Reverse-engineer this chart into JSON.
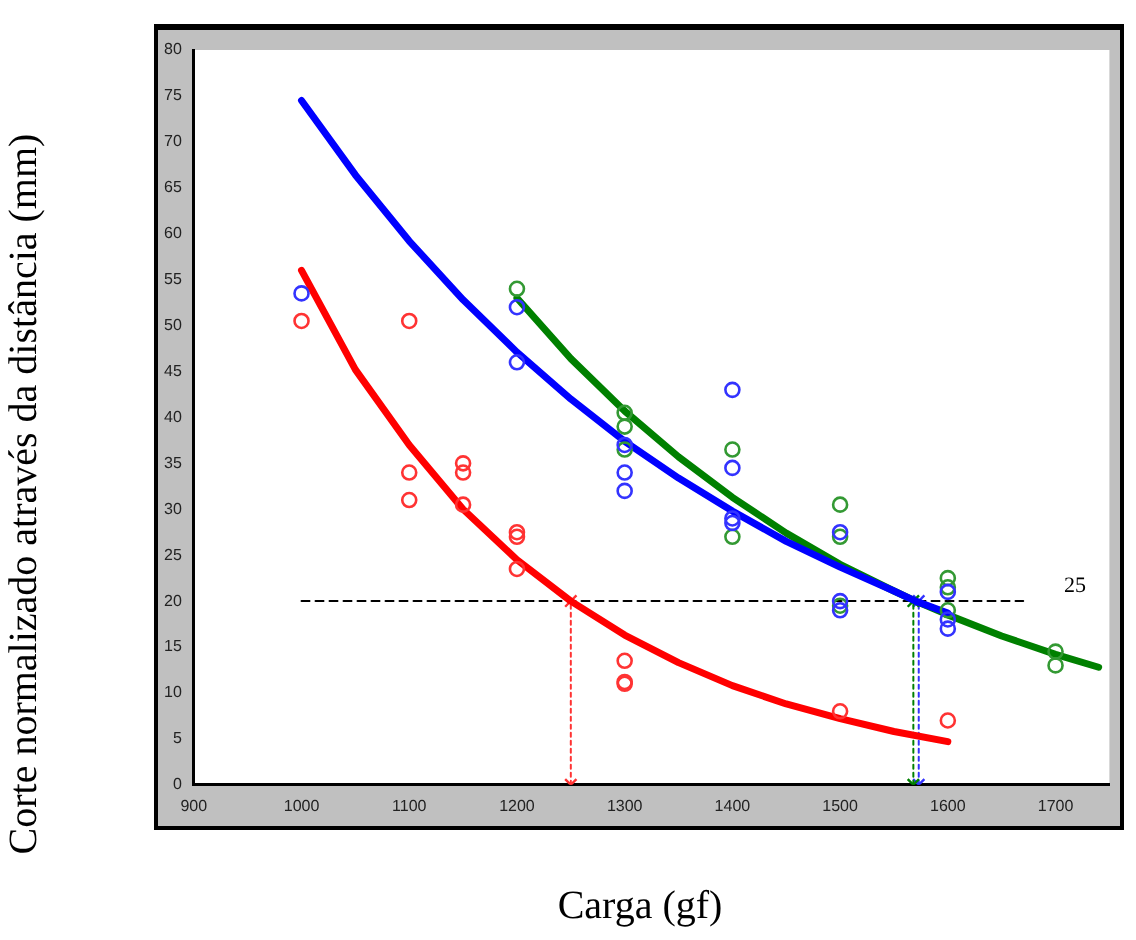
{
  "chart_data": {
    "type": "scatter",
    "xlabel": "Carga (gf)",
    "ylabel": "Corte normalizado através da distância (mm)",
    "xlim": [
      900,
      1750
    ],
    "xticks": [
      900,
      1000,
      1100,
      1200,
      1300,
      1400,
      1500,
      1600,
      1700
    ],
    "ylim": [
      0,
      80
    ],
    "yticks": [
      0,
      5,
      10,
      15,
      20,
      25,
      30,
      35,
      40,
      45,
      50,
      55,
      60,
      65,
      70,
      75,
      80
    ],
    "grid": false,
    "legend": false,
    "marker": "circle",
    "annotations": [
      "25"
    ],
    "series": [
      {
        "color": "#ff3333",
        "x": [
          1000,
          1100,
          1100,
          1100,
          1150,
          1150,
          1150,
          1200,
          1200,
          1200,
          1300,
          1300,
          1300,
          1500,
          1600
        ],
        "values": [
          50.5,
          50.5,
          34,
          31,
          35,
          34,
          30.5,
          27.5,
          27,
          23.5,
          13.5,
          11.2,
          11,
          8,
          7
        ]
      },
      {
        "color": "#3333ff",
        "x": [
          1000,
          1200,
          1200,
          1300,
          1300,
          1300,
          1400,
          1400,
          1400,
          1400,
          1500,
          1500,
          1500,
          1600,
          1600,
          1600
        ],
        "values": [
          53.5,
          52,
          46,
          37,
          34,
          32,
          43,
          34.5,
          29,
          28.5,
          27.5,
          20,
          19,
          21,
          18,
          17
        ]
      },
      {
        "color": "#339933",
        "x": [
          1200,
          1300,
          1300,
          1300,
          1400,
          1400,
          1500,
          1500,
          1500,
          1600,
          1600,
          1600,
          1700,
          1700
        ],
        "values": [
          54,
          40.5,
          39,
          36.5,
          36.5,
          27,
          30.5,
          27,
          19.5,
          22.5,
          21.5,
          19,
          14.5,
          13
        ]
      },
      {
        "type": "line",
        "color": "#ff0000",
        "marker": "none",
        "x": [
          1000,
          1050,
          1100,
          1150,
          1200,
          1250,
          1300,
          1350,
          1400,
          1450,
          1500,
          1550,
          1600
        ],
        "values": [
          56,
          45.2,
          37,
          30,
          24.5,
          20,
          16.3,
          13.3,
          10.8,
          8.8,
          7.2,
          5.8,
          4.7
        ]
      },
      {
        "type": "line",
        "color": "#0000ff",
        "marker": "none",
        "x": [
          1000,
          1050,
          1100,
          1150,
          1200,
          1250,
          1300,
          1350,
          1400,
          1450,
          1500,
          1550,
          1570,
          1600
        ],
        "values": [
          74.5,
          66.4,
          59.2,
          52.8,
          47.1,
          42,
          37.4,
          33.4,
          29.8,
          26.5,
          23.7,
          21.1,
          20,
          18.7
        ]
      },
      {
        "type": "line",
        "color": "#008000",
        "marker": "none",
        "x": [
          1200,
          1250,
          1300,
          1350,
          1400,
          1450,
          1500,
          1550,
          1570,
          1600,
          1650,
          1700,
          1740
        ],
        "values": [
          53,
          46.4,
          40.7,
          35.7,
          31.3,
          27.4,
          24,
          21.1,
          20,
          18.5,
          16.2,
          14.2,
          12.8
        ]
      },
      {
        "type": "line",
        "color": "#000000",
        "marker": "none",
        "line_style": "dashed",
        "x": [
          1000,
          1670
        ],
        "values": [
          20,
          20
        ]
      },
      {
        "type": "line",
        "color": "#ff3333",
        "marker": "cross",
        "line_style": "dotted",
        "x": [
          1250,
          1250
        ],
        "values": [
          0,
          20
        ]
      },
      {
        "type": "line",
        "color": "#008000",
        "marker": "cross",
        "line_style": "dotted",
        "x": [
          1568,
          1568
        ],
        "values": [
          0,
          20
        ]
      },
      {
        "type": "line",
        "color": "#3333ff",
        "marker": "cross",
        "line_style": "dotted",
        "x": [
          1573,
          1573
        ],
        "values": [
          0,
          20
        ]
      }
    ]
  }
}
